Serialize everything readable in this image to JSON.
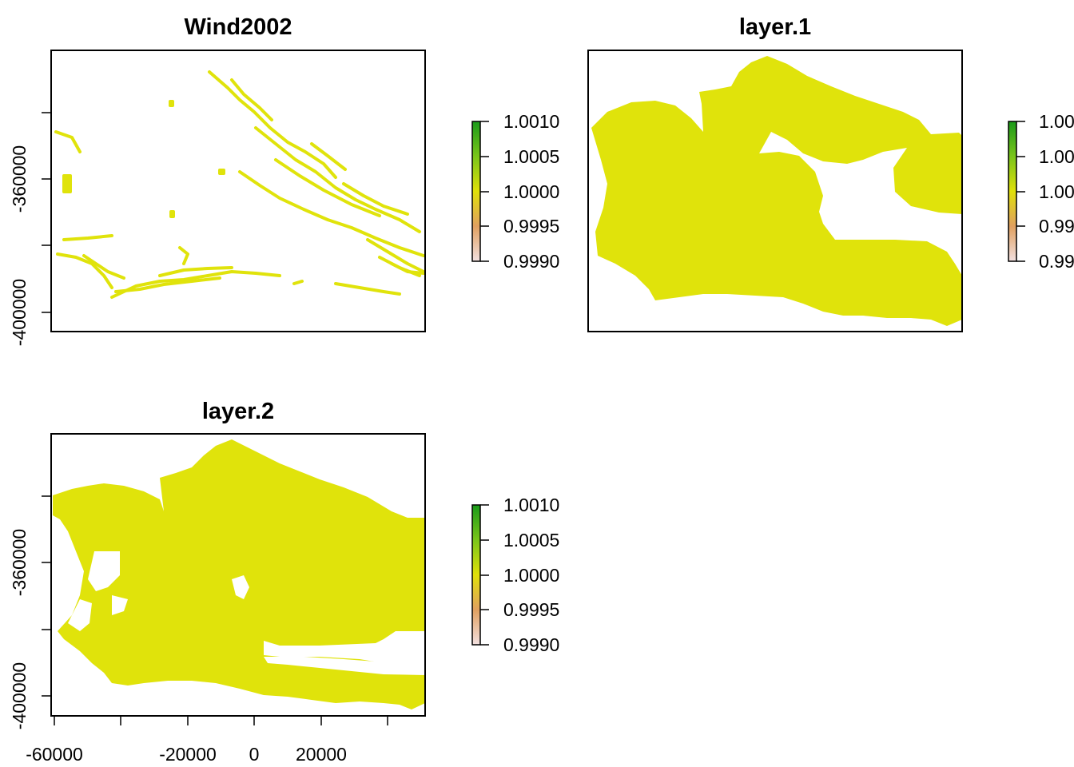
{
  "chart_data": [
    {
      "type": "heatmap",
      "title": "Wind2002",
      "xlabel": "",
      "ylabel": "",
      "y_ticks": [
        -360000,
        -400000
      ],
      "y_tick_labels": [
        "-360000",
        "-400000"
      ],
      "x_ticks": [],
      "x_tick_labels": [],
      "legend": {
        "placement": "right",
        "labels": [
          "1.0010",
          "1.0005",
          "1.0000",
          "0.9995",
          "0.9990"
        ],
        "colors": [
          "#1a9a1a",
          "#7ac51a",
          "#e0e00a",
          "#e0a060",
          "#f2e0e0"
        ]
      },
      "fill_color": "#e0e30b",
      "value": 1.0
    },
    {
      "type": "heatmap",
      "title": "layer.1",
      "xlabel": "",
      "ylabel": "",
      "y_ticks": [],
      "y_tick_labels": [],
      "x_ticks": [],
      "x_tick_labels": [],
      "legend": {
        "placement": "right",
        "labels": [
          "1.00",
          "1.00",
          "1.00",
          "0.99",
          "0.99"
        ],
        "colors": [
          "#1a9a1a",
          "#7ac51a",
          "#e0e00a",
          "#e0a060",
          "#f2e0e0"
        ]
      },
      "fill_color": "#e0e30b",
      "value": 1.0
    },
    {
      "type": "heatmap",
      "title": "layer.2",
      "xlabel": "",
      "ylabel": "",
      "y_ticks": [
        -360000,
        -400000
      ],
      "y_tick_labels": [
        "-360000",
        "-400000"
      ],
      "x_ticks": [
        -60000,
        -20000,
        0,
        20000
      ],
      "x_tick_labels": [
        "-60000",
        "-20000",
        "0",
        "20000"
      ],
      "legend": {
        "placement": "right",
        "labels": [
          "1.0010",
          "1.0005",
          "1.0000",
          "0.9995",
          "0.9990"
        ],
        "colors": [
          "#1a9a1a",
          "#7ac51a",
          "#e0e00a",
          "#e0a060",
          "#f2e0e0"
        ]
      },
      "fill_color": "#e0e30b",
      "value": 1.0
    }
  ]
}
